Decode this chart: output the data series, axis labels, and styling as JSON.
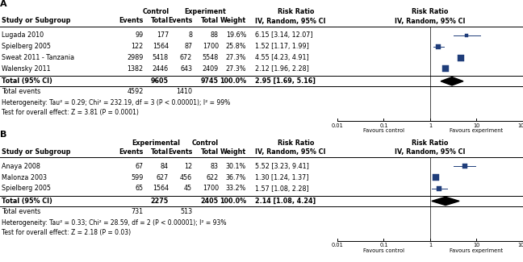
{
  "panel_A": {
    "label": "A",
    "col1_header": "Control",
    "col2_header": "Experiment",
    "col3_header": "Risk Ratio",
    "studies": [
      {
        "name": "Lugada 2010",
        "c_e": 99,
        "c_t": 177,
        "e_e": 8,
        "e_t": 88,
        "weight": "19.6%",
        "rr": "6.15 [3.14, 12.07]",
        "est": 6.15,
        "lo": 3.14,
        "hi": 12.07,
        "sq": 3.5
      },
      {
        "name": "Spielberg 2005",
        "c_e": 122,
        "c_t": 1564,
        "e_e": 87,
        "e_t": 1700,
        "weight": "25.8%",
        "rr": "1.52 [1.17, 1.99]",
        "est": 1.52,
        "lo": 1.17,
        "hi": 1.99,
        "sq": 4.5
      },
      {
        "name": "Sweat 2011 - Tanzania",
        "c_e": 2989,
        "c_t": 5418,
        "e_e": 672,
        "e_t": 5548,
        "weight": "27.3%",
        "rr": "4.55 [4.23, 4.91]",
        "est": 4.55,
        "lo": 4.23,
        "hi": 4.91,
        "sq": 5.5
      },
      {
        "name": "Walensky 2011",
        "c_e": 1382,
        "c_t": 2446,
        "e_e": 643,
        "e_t": 2409,
        "weight": "27.3%",
        "rr": "2.12 [1.96, 2.28]",
        "est": 2.12,
        "lo": 1.96,
        "hi": 2.28,
        "sq": 5.5
      }
    ],
    "total_c_t": "9605",
    "total_e_t": "9745",
    "total_weight": "100.0%",
    "total_rr": "2.95 [1.69, 5.16]",
    "total_est": 2.95,
    "total_lo": 1.69,
    "total_hi": 5.16,
    "total_c_e": "4592",
    "total_e_e": "1410",
    "heterogeneity": "Heterogeneity: Tau² = 0.29; Chi² = 232.19, df = 3 (P < 0.00001); I² = 99%",
    "overall_test": "Test for overall effect: Z = 3.81 (P = 0.0001)"
  },
  "panel_B": {
    "label": "B",
    "col1_header": "Experimental",
    "col2_header": "Control",
    "col3_header": "Risk Ratio",
    "studies": [
      {
        "name": "Anaya 2008",
        "c_e": 67,
        "c_t": 84,
        "e_e": 12,
        "e_t": 83,
        "weight": "30.1%",
        "rr": "5.52 [3.23, 9.41]",
        "est": 5.52,
        "lo": 3.23,
        "hi": 9.41,
        "sq": 4.0
      },
      {
        "name": "Malonza 2003",
        "c_e": 599,
        "c_t": 627,
        "e_e": 456,
        "e_t": 622,
        "weight": "36.7%",
        "rr": "1.30 [1.24, 1.37]",
        "est": 1.3,
        "lo": 1.24,
        "hi": 1.37,
        "sq": 5.5
      },
      {
        "name": "Spielberg 2005",
        "c_e": 65,
        "c_t": 1564,
        "e_e": 45,
        "e_t": 1700,
        "weight": "33.2%",
        "rr": "1.57 [1.08, 2.28]",
        "est": 1.57,
        "lo": 1.08,
        "hi": 2.28,
        "sq": 4.5
      }
    ],
    "total_c_t": "2275",
    "total_e_t": "2405",
    "total_weight": "100.0%",
    "total_rr": "2.14 [1.08, 4.24]",
    "total_est": 2.14,
    "total_lo": 1.08,
    "total_hi": 4.24,
    "total_c_e": "731",
    "total_e_e": "513",
    "heterogeneity": "Heterogeneity: Tau² = 0.33; Chi² = 28.59, df = 2 (P < 0.00001); I² = 93%",
    "overall_test": "Test for overall effect: Z = 2.18 (P = 0.03)"
  },
  "marker_color": "#1f3d7a",
  "diamond_color": "#000000"
}
